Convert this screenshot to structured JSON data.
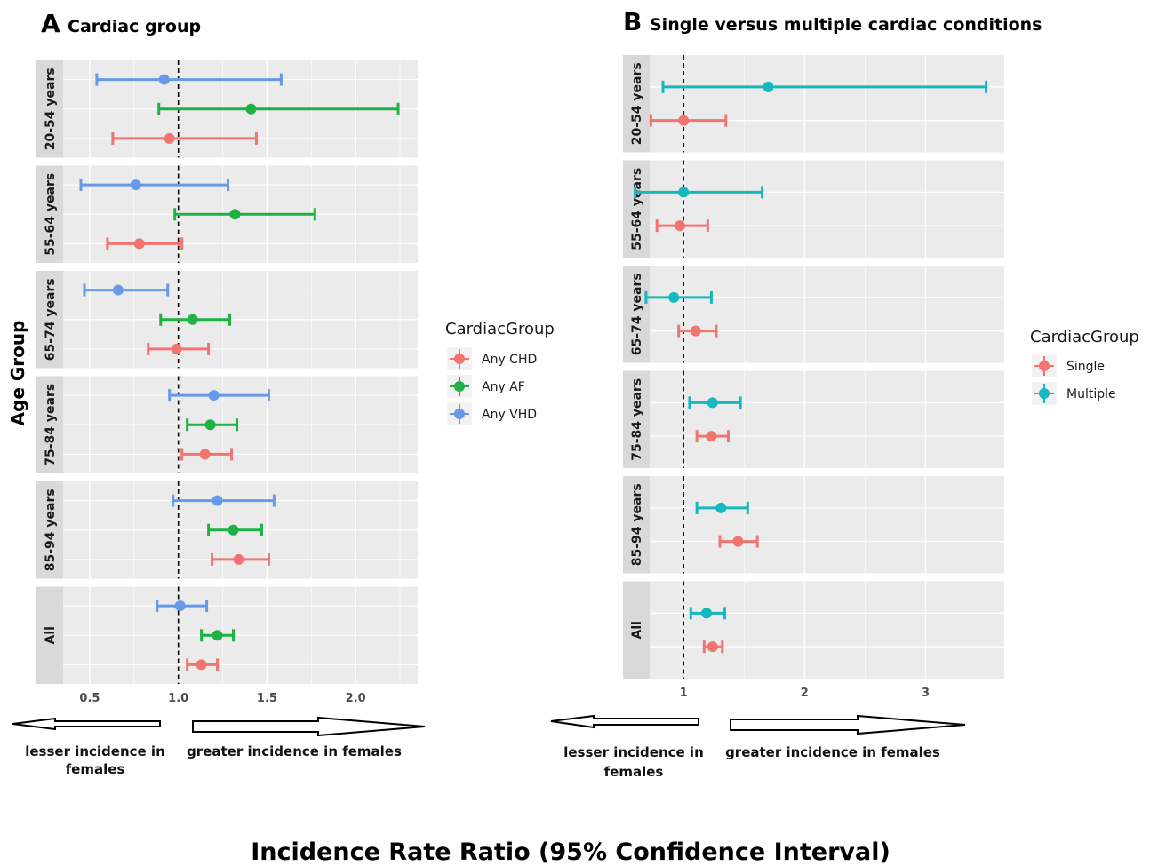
{
  "chart_data": [
    {
      "type": "forest",
      "panel_letter": "A",
      "title": "Cardiac group",
      "ylabel": "Age Group",
      "x_ticks": [
        0.5,
        1.0,
        1.5,
        2.0
      ],
      "x_tick_labels": [
        "0.5",
        "1.0",
        "1.5",
        "2.0"
      ],
      "xlim": [
        0.35,
        2.35
      ],
      "reference_line": 1.0,
      "grid": true,
      "legend": {
        "title": "CardiacGroup",
        "entries": [
          {
            "label": "Any CHD",
            "color": "#F07470"
          },
          {
            "label": "Any AF",
            "color": "#1EB244"
          },
          {
            "label": "Any VHD",
            "color": "#6799E8"
          }
        ]
      },
      "series_order_top_to_bottom": [
        "Any VHD",
        "Any AF",
        "Any CHD"
      ],
      "facets": [
        {
          "label": "20-54 years",
          "rows": [
            {
              "series": "Any VHD",
              "estimate": 0.92,
              "lower": 0.54,
              "upper": 1.58
            },
            {
              "series": "Any AF",
              "estimate": 1.41,
              "lower": 0.89,
              "upper": 2.24
            },
            {
              "series": "Any CHD",
              "estimate": 0.95,
              "lower": 0.63,
              "upper": 1.44
            }
          ]
        },
        {
          "label": "55-64 years",
          "rows": [
            {
              "series": "Any VHD",
              "estimate": 0.76,
              "lower": 0.45,
              "upper": 1.28
            },
            {
              "series": "Any AF",
              "estimate": 1.32,
              "lower": 0.98,
              "upper": 1.77
            },
            {
              "series": "Any CHD",
              "estimate": 0.78,
              "lower": 0.6,
              "upper": 1.02
            }
          ]
        },
        {
          "label": "65-74 years",
          "rows": [
            {
              "series": "Any VHD",
              "estimate": 0.66,
              "lower": 0.47,
              "upper": 0.94
            },
            {
              "series": "Any AF",
              "estimate": 1.08,
              "lower": 0.9,
              "upper": 1.29
            },
            {
              "series": "Any CHD",
              "estimate": 0.99,
              "lower": 0.83,
              "upper": 1.17
            }
          ]
        },
        {
          "label": "75-84 years",
          "rows": [
            {
              "series": "Any VHD",
              "estimate": 1.2,
              "lower": 0.95,
              "upper": 1.51
            },
            {
              "series": "Any AF",
              "estimate": 1.18,
              "lower": 1.05,
              "upper": 1.33
            },
            {
              "series": "Any CHD",
              "estimate": 1.15,
              "lower": 1.02,
              "upper": 1.3
            }
          ]
        },
        {
          "label": "85-94 years",
          "rows": [
            {
              "series": "Any VHD",
              "estimate": 1.22,
              "lower": 0.97,
              "upper": 1.54
            },
            {
              "series": "Any AF",
              "estimate": 1.31,
              "lower": 1.17,
              "upper": 1.47
            },
            {
              "series": "Any CHD",
              "estimate": 1.34,
              "lower": 1.19,
              "upper": 1.51
            }
          ]
        },
        {
          "label": "All",
          "rows": [
            {
              "series": "Any VHD",
              "estimate": 1.01,
              "lower": 0.88,
              "upper": 1.16
            },
            {
              "series": "Any AF",
              "estimate": 1.22,
              "lower": 1.13,
              "upper": 1.31
            },
            {
              "series": "Any CHD",
              "estimate": 1.13,
              "lower": 1.05,
              "upper": 1.22
            }
          ]
        }
      ],
      "arrow_labels": {
        "left": "lesser incidence in females",
        "right": "greater incidence in females"
      }
    },
    {
      "type": "forest",
      "panel_letter": "B",
      "title": "Single versus multiple cardiac conditions",
      "x_ticks": [
        1,
        2,
        3
      ],
      "x_tick_labels": [
        "1",
        "2",
        "3"
      ],
      "xlim": [
        0.72,
        3.65
      ],
      "reference_line": 1,
      "grid": true,
      "legend": {
        "title": "CardiacGroup",
        "entries": [
          {
            "label": "Single",
            "color": "#F07470"
          },
          {
            "label": "Multiple",
            "color": "#15B8BE"
          }
        ]
      },
      "series_order_top_to_bottom": [
        "Multiple",
        "Single"
      ],
      "facets": [
        {
          "label": "20-54 years",
          "rows": [
            {
              "series": "Multiple",
              "estimate": 1.7,
              "lower": 0.83,
              "upper": 3.5
            },
            {
              "series": "Single",
              "estimate": 1.0,
              "lower": 0.73,
              "upper": 1.35
            }
          ]
        },
        {
          "label": "55-64 years",
          "rows": [
            {
              "series": "Multiple",
              "estimate": 1.0,
              "lower": 0.6,
              "upper": 1.65
            },
            {
              "series": "Single",
              "estimate": 0.97,
              "lower": 0.78,
              "upper": 1.2
            }
          ]
        },
        {
          "label": "65-74 years",
          "rows": [
            {
              "series": "Multiple",
              "estimate": 0.92,
              "lower": 0.69,
              "upper": 1.23
            },
            {
              "series": "Single",
              "estimate": 1.1,
              "lower": 0.96,
              "upper": 1.27
            }
          ]
        },
        {
          "label": "75-84 years",
          "rows": [
            {
              "series": "Multiple",
              "estimate": 1.24,
              "lower": 1.05,
              "upper": 1.47
            },
            {
              "series": "Single",
              "estimate": 1.23,
              "lower": 1.11,
              "upper": 1.37
            }
          ]
        },
        {
          "label": "85-94 years",
          "rows": [
            {
              "series": "Multiple",
              "estimate": 1.31,
              "lower": 1.11,
              "upper": 1.53
            },
            {
              "series": "Single",
              "estimate": 1.45,
              "lower": 1.3,
              "upper": 1.61
            }
          ]
        },
        {
          "label": "All",
          "rows": [
            {
              "series": "Multiple",
              "estimate": 1.19,
              "lower": 1.06,
              "upper": 1.34
            },
            {
              "series": "Single",
              "estimate": 1.24,
              "lower": 1.17,
              "upper": 1.32
            }
          ]
        }
      ],
      "arrow_labels": {
        "left": "lesser incidence in females",
        "right": "greater incidence in females"
      }
    }
  ],
  "figure": {
    "bottom_title": "Incidence Rate Ratio (95% Confidence Interval)",
    "panel_a_arrow_left_lines": [
      "lesser incidence in",
      "females"
    ],
    "panel_a_arrow_right_line": "greater incidence in females",
    "panel_b_arrow_left_lines": [
      "lesser incidence in",
      "females"
    ],
    "panel_b_arrow_right_line": "greater incidence in females"
  },
  "colors": {
    "panel_bg": "#EBEBEB",
    "strip_bg": "#D9D9D9",
    "grid_major": "#FFFFFF"
  }
}
